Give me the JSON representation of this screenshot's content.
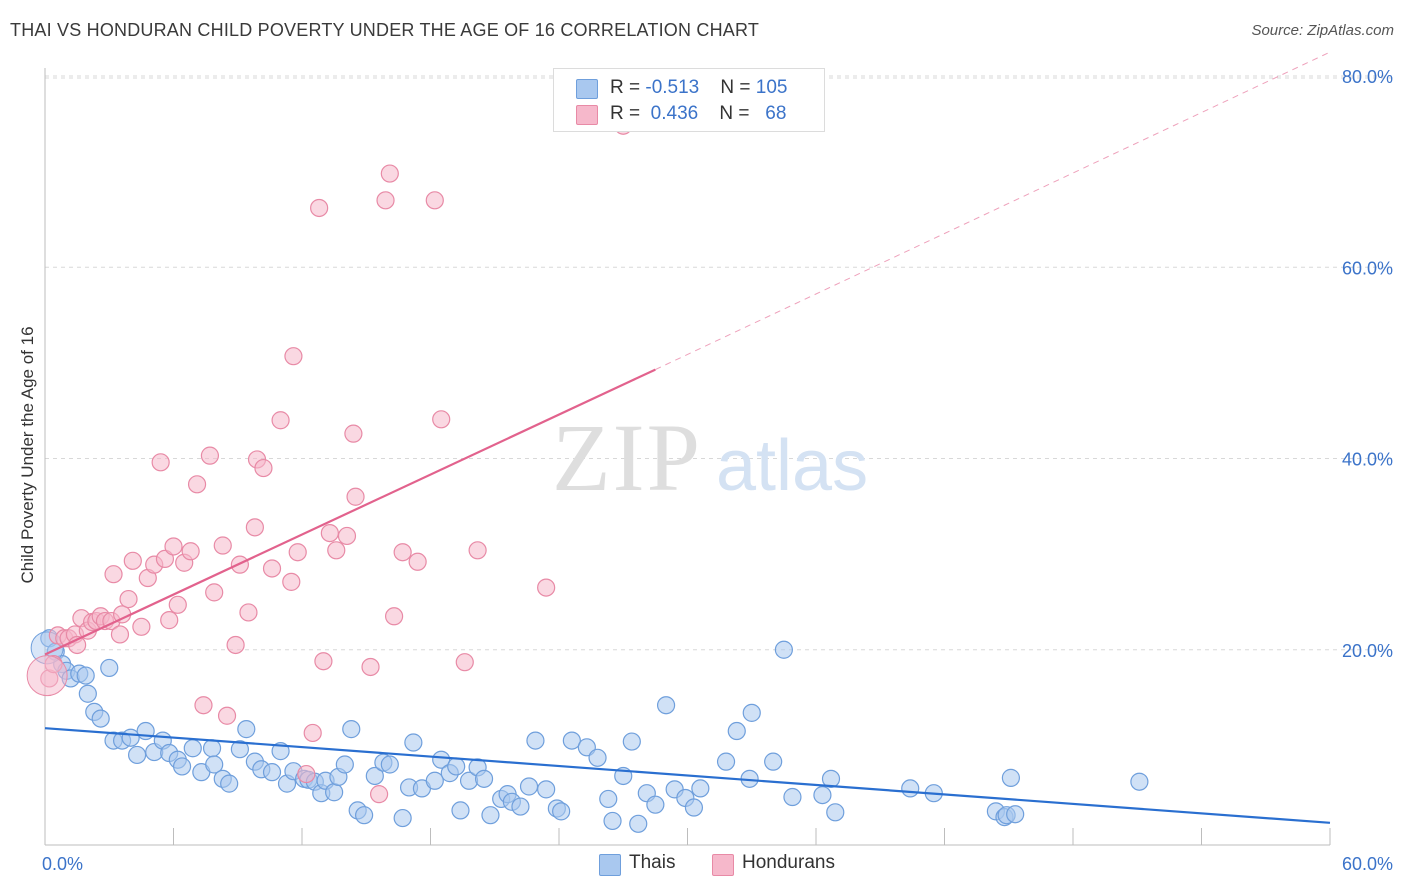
{
  "title": "THAI VS HONDURAN CHILD POVERTY UNDER THE AGE OF 16 CORRELATION CHART",
  "source": "Source: ZipAtlas.com",
  "watermark": {
    "zip": "ZIP",
    "atlas": "atlas"
  },
  "stats": [
    {
      "r_label": "R = ",
      "r_value": "-0.513",
      "n_label": "N = ",
      "n_value": "105",
      "color": "#a9c8ef",
      "border": "#6f9fdc"
    },
    {
      "r_label": "R = ",
      "r_value": "0.436",
      "n_label": "N = ",
      "n_value": "68",
      "color": "#f6b8cb",
      "border": "#e88aa6"
    }
  ],
  "legend": [
    {
      "name": "Thais",
      "color": "#a9c8ef",
      "border": "#6f9fdc"
    },
    {
      "name": "Hondurans",
      "color": "#f6b8cb",
      "border": "#e88aa6"
    }
  ],
  "colors": {
    "blue_line": "#2a6fd0",
    "pink_line": "#e2628d",
    "axis_text": "#3b73c9",
    "grid": "#d8d8d8"
  },
  "chart_data": {
    "type": "scatter",
    "title": "THAI VS HONDURAN CHILD POVERTY UNDER THE AGE OF 16 CORRELATION CHART",
    "xlabel": "",
    "ylabel": "Child Poverty Under the Age of 16",
    "xlim": [
      0,
      60
    ],
    "ylim": [
      0,
      80
    ],
    "x_tick_labels": [
      "0.0%",
      "60.0%"
    ],
    "y_tick_labels": [
      "20.0%",
      "40.0%",
      "60.0%",
      "80.0%"
    ],
    "y_ticks": [
      20,
      40,
      60,
      80
    ],
    "grid": true,
    "legend_position": "bottom-center",
    "series": [
      {
        "name": "Thais",
        "trend": {
          "x": [
            0,
            60
          ],
          "y": [
            11.8,
            1.9
          ]
        },
        "points": [
          [
            0.2,
            21.2
          ],
          [
            0.5,
            19.8
          ],
          [
            0.8,
            18.5
          ],
          [
            1.0,
            17.8
          ],
          [
            1.2,
            17.0
          ],
          [
            1.6,
            17.5
          ],
          [
            1.9,
            17.3
          ],
          [
            3.0,
            18.1
          ],
          [
            2.0,
            15.4
          ],
          [
            2.3,
            13.5
          ],
          [
            2.6,
            12.8
          ],
          [
            3.2,
            10.5
          ],
          [
            3.6,
            10.5
          ],
          [
            4.0,
            10.8
          ],
          [
            4.3,
            9.0
          ],
          [
            4.7,
            11.5
          ],
          [
            5.1,
            9.3
          ],
          [
            5.5,
            10.5
          ],
          [
            5.8,
            9.2
          ],
          [
            6.2,
            8.5
          ],
          [
            6.4,
            7.8
          ],
          [
            6.9,
            9.7
          ],
          [
            7.3,
            7.2
          ],
          [
            7.8,
            9.7
          ],
          [
            7.9,
            8.0
          ],
          [
            8.3,
            6.5
          ],
          [
            8.6,
            6.0
          ],
          [
            9.1,
            9.6
          ],
          [
            9.4,
            11.7
          ],
          [
            9.8,
            8.3
          ],
          [
            10.1,
            7.5
          ],
          [
            10.6,
            7.2
          ],
          [
            11.0,
            9.4
          ],
          [
            11.3,
            6.0
          ],
          [
            11.6,
            7.3
          ],
          [
            12.1,
            6.5
          ],
          [
            12.3,
            6.4
          ],
          [
            12.6,
            6.2
          ],
          [
            12.9,
            5.0
          ],
          [
            13.1,
            6.3
          ],
          [
            13.5,
            5.1
          ],
          [
            13.7,
            6.7
          ],
          [
            14.0,
            8.0
          ],
          [
            14.3,
            11.7
          ],
          [
            14.6,
            3.2
          ],
          [
            14.9,
            2.7
          ],
          [
            15.4,
            6.8
          ],
          [
            15.8,
            8.2
          ],
          [
            16.1,
            8.0
          ],
          [
            16.7,
            2.4
          ],
          [
            17.0,
            5.6
          ],
          [
            17.2,
            10.3
          ],
          [
            17.6,
            5.5
          ],
          [
            18.2,
            6.3
          ],
          [
            18.5,
            8.5
          ],
          [
            18.9,
            7.1
          ],
          [
            19.2,
            7.8
          ],
          [
            19.4,
            3.2
          ],
          [
            19.8,
            6.3
          ],
          [
            20.2,
            7.7
          ],
          [
            20.5,
            6.5
          ],
          [
            20.8,
            2.7
          ],
          [
            21.3,
            4.4
          ],
          [
            21.6,
            4.9
          ],
          [
            21.8,
            4.1
          ],
          [
            22.2,
            3.6
          ],
          [
            22.6,
            5.7
          ],
          [
            22.9,
            10.5
          ],
          [
            23.4,
            5.4
          ],
          [
            23.9,
            3.4
          ],
          [
            24.1,
            3.1
          ],
          [
            24.6,
            10.5
          ],
          [
            25.3,
            9.8
          ],
          [
            25.8,
            8.7
          ],
          [
            26.3,
            4.4
          ],
          [
            26.5,
            2.1
          ],
          [
            27.0,
            6.8
          ],
          [
            27.4,
            10.4
          ],
          [
            27.7,
            1.8
          ],
          [
            28.1,
            5.0
          ],
          [
            28.5,
            3.8
          ],
          [
            29.0,
            14.2
          ],
          [
            29.4,
            5.4
          ],
          [
            29.9,
            4.5
          ],
          [
            30.3,
            3.5
          ],
          [
            30.6,
            5.5
          ],
          [
            31.8,
            8.3
          ],
          [
            32.3,
            11.5
          ],
          [
            32.9,
            6.5
          ],
          [
            33.0,
            13.4
          ],
          [
            34.0,
            8.3
          ],
          [
            34.5,
            20.0
          ],
          [
            34.9,
            4.6
          ],
          [
            36.3,
            4.8
          ],
          [
            36.7,
            6.5
          ],
          [
            36.9,
            3.0
          ],
          [
            40.4,
            5.5
          ],
          [
            41.5,
            5.0
          ],
          [
            44.4,
            3.1
          ],
          [
            44.8,
            2.5
          ],
          [
            44.9,
            2.7
          ],
          [
            45.1,
            6.6
          ],
          [
            45.3,
            2.8
          ],
          [
            51.1,
            6.2
          ]
        ]
      },
      {
        "name": "Hondurans",
        "trend": {
          "x": [
            0,
            28.5
          ],
          "y": [
            19.5,
            49.3
          ]
        },
        "trend_dashed": {
          "x": [
            28.5,
            60
          ],
          "y": [
            49.3,
            82.5
          ]
        },
        "points": [
          [
            0.2,
            17.0
          ],
          [
            0.4,
            18.5
          ],
          [
            0.6,
            21.5
          ],
          [
            0.9,
            21.2
          ],
          [
            1.1,
            21.2
          ],
          [
            1.4,
            21.6
          ],
          [
            1.5,
            20.5
          ],
          [
            1.7,
            23.3
          ],
          [
            2.0,
            22.0
          ],
          [
            2.2,
            22.9
          ],
          [
            2.4,
            23.0
          ],
          [
            2.6,
            23.5
          ],
          [
            2.8,
            23.0
          ],
          [
            3.1,
            23.0
          ],
          [
            3.2,
            27.9
          ],
          [
            3.5,
            21.6
          ],
          [
            3.6,
            23.7
          ],
          [
            3.9,
            25.3
          ],
          [
            4.1,
            29.3
          ],
          [
            4.5,
            22.4
          ],
          [
            4.8,
            27.5
          ],
          [
            5.1,
            28.9
          ],
          [
            5.4,
            39.6
          ],
          [
            5.6,
            29.5
          ],
          [
            5.8,
            23.1
          ],
          [
            6.0,
            30.8
          ],
          [
            6.2,
            24.7
          ],
          [
            6.5,
            29.1
          ],
          [
            6.8,
            30.3
          ],
          [
            7.1,
            37.3
          ],
          [
            7.4,
            14.2
          ],
          [
            7.7,
            40.3
          ],
          [
            7.9,
            26.0
          ],
          [
            8.3,
            30.9
          ],
          [
            8.5,
            13.1
          ],
          [
            8.9,
            20.5
          ],
          [
            9.1,
            28.9
          ],
          [
            9.5,
            23.9
          ],
          [
            9.8,
            32.8
          ],
          [
            9.9,
            39.9
          ],
          [
            10.2,
            39.0
          ],
          [
            10.6,
            28.5
          ],
          [
            11.0,
            44.0
          ],
          [
            11.5,
            27.1
          ],
          [
            11.6,
            50.7
          ],
          [
            11.8,
            30.2
          ],
          [
            12.2,
            7.0
          ],
          [
            12.5,
            11.3
          ],
          [
            12.8,
            66.2
          ],
          [
            13.0,
            18.8
          ],
          [
            13.3,
            32.2
          ],
          [
            13.6,
            30.4
          ],
          [
            14.1,
            31.9
          ],
          [
            14.4,
            42.6
          ],
          [
            14.5,
            36.0
          ],
          [
            15.2,
            18.2
          ],
          [
            15.6,
            4.9
          ],
          [
            15.9,
            67.0
          ],
          [
            16.1,
            69.8
          ],
          [
            16.3,
            23.5
          ],
          [
            16.7,
            30.2
          ],
          [
            17.4,
            29.2
          ],
          [
            18.2,
            67.0
          ],
          [
            18.5,
            44.1
          ],
          [
            19.6,
            18.7
          ],
          [
            20.2,
            30.4
          ],
          [
            23.4,
            26.5
          ],
          [
            27.0,
            74.8
          ]
        ]
      }
    ]
  }
}
